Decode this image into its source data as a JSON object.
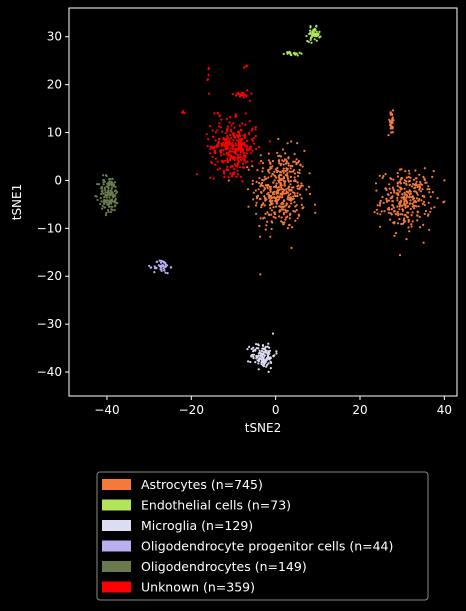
{
  "chart_data": {
    "type": "scatter",
    "title": "",
    "xlabel": "tSNE2",
    "ylabel": "tSNE1",
    "xlim": [
      -49,
      43
    ],
    "ylim": [
      -45,
      36
    ],
    "xticks": [
      -40,
      -20,
      0,
      20,
      40
    ],
    "yticks": [
      -40,
      -30,
      -20,
      -10,
      0,
      10,
      20,
      30
    ],
    "background": "#000000",
    "grid": false,
    "legend_position": "below",
    "series": [
      {
        "name": "Astrocytes (n=745)",
        "color": "#f47a3c",
        "count": 745,
        "clusters": [
          {
            "center": [
              1,
              -2
            ],
            "spread": [
              5,
              7
            ],
            "n": 420
          },
          {
            "center": [
              31,
              -4
            ],
            "spread": [
              5,
              5
            ],
            "n": 290
          },
          {
            "center": [
              27.5,
              12
            ],
            "spread": [
              0.7,
              2
            ],
            "n": 35
          }
        ]
      },
      {
        "name": "Endothelial cells (n=73)",
        "color": "#b2e55c",
        "count": 73,
        "clusters": [
          {
            "center": [
              9,
              30.5
            ],
            "spread": [
              1.2,
              1.2
            ],
            "n": 55
          },
          {
            "center": [
              4,
              26.5
            ],
            "spread": [
              1.6,
              0.4
            ],
            "n": 18
          }
        ]
      },
      {
        "name": "Microglia (n=129)",
        "color": "#dcdcf2",
        "count": 129,
        "clusters": [
          {
            "center": [
              -3,
              -36.5
            ],
            "spread": [
              2.4,
              2.2
            ],
            "n": 129
          }
        ]
      },
      {
        "name": "Oligodendrocyte progenitor cells (n=44)",
        "color": "#b9b0ef",
        "count": 44,
        "clusters": [
          {
            "center": [
              -27,
              -18
            ],
            "spread": [
              1.6,
              1.2
            ],
            "n": 44
          }
        ]
      },
      {
        "name": "Oligodendrocytes (n=149)",
        "color": "#6b7a4e",
        "count": 149,
        "clusters": [
          {
            "center": [
              -39.5,
              -3
            ],
            "spread": [
              2,
              3.3
            ],
            "n": 149
          }
        ]
      },
      {
        "name": "Unknown (n=359)",
        "color": "#ff0000",
        "count": 359,
        "clusters": [
          {
            "center": [
              -10,
              7
            ],
            "spread": [
              4.5,
              4.5
            ],
            "n": 320
          },
          {
            "center": [
              -8,
              18
            ],
            "spread": [
              1.5,
              0.8
            ],
            "n": 20
          },
          {
            "center": [
              -22,
              14
            ],
            "spread": [
              0.5,
              0.5
            ],
            "n": 5
          },
          {
            "center": [
              -16,
              21.5
            ],
            "spread": [
              0.3,
              2.5
            ],
            "n": 6
          },
          {
            "center": [
              -7,
              23.5
            ],
            "spread": [
              0.6,
              0.3
            ],
            "n": 3
          },
          {
            "center": [
              -14,
              14
            ],
            "spread": [
              0.8,
              0.6
            ],
            "n": 5
          }
        ]
      }
    ]
  }
}
